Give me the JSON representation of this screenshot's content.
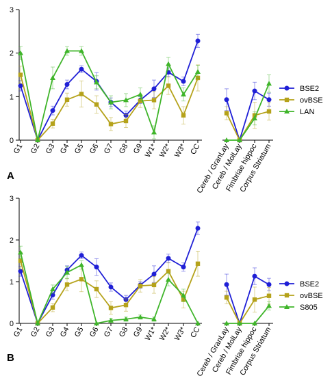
{
  "chart_data": [
    {
      "panel_label": "A",
      "type": "line",
      "categories": [
        "G1",
        "G2",
        "G3",
        "G4",
        "G5",
        "G6",
        "G7",
        "G8",
        "G9",
        "W1*",
        "W2*",
        "W3*",
        "CC",
        "Cereb / GranLay",
        "Cereb / MolLay",
        "Fimbriae hippoc",
        "Corpus Striatum"
      ],
      "ylim": [
        0,
        3
      ],
      "yticks": [
        "0",
        "1",
        "2",
        "3"
      ],
      "groups": [
        [
          0,
          12
        ],
        [
          13,
          16
        ]
      ],
      "legend_position": "right",
      "series": [
        {
          "name": "BSE2",
          "color": "#1f1fd6",
          "marker": "circle",
          "values": [
            1.25,
            0,
            0.68,
            1.28,
            1.63,
            1.35,
            0.87,
            0.57,
            0.92,
            1.18,
            1.56,
            1.35,
            2.28,
            0.93,
            0,
            1.13,
            0.93
          ],
          "errors": [
            0.12,
            0,
            0.1,
            0.1,
            0.08,
            0.2,
            0.1,
            0.1,
            0.08,
            0.2,
            0.1,
            0.1,
            0.15,
            0.25,
            0,
            0.2,
            0.15
          ]
        },
        {
          "name": "ovBSE",
          "color": "#b5a21a",
          "marker": "square",
          "values": [
            1.5,
            0,
            0.38,
            0.93,
            1.06,
            0.82,
            0.37,
            0.44,
            0.9,
            0.92,
            1.25,
            0.57,
            1.43,
            0.62,
            0,
            0.57,
            0.66
          ],
          "errors": [
            0.2,
            0,
            0.1,
            0.15,
            0.3,
            0.2,
            0.15,
            0.15,
            0.15,
            0.2,
            0.2,
            0.2,
            0.3,
            0.15,
            0,
            0.3,
            0.2
          ]
        },
        {
          "name": "LAN",
          "color": "#3fb52a",
          "marker": "triangle",
          "values": [
            2.0,
            0,
            1.43,
            2.05,
            2.05,
            1.33,
            0.87,
            0.92,
            1.05,
            0.18,
            1.75,
            1.05,
            1.57,
            0,
            0,
            0.5,
            1.3
          ],
          "errors": [
            0.15,
            0,
            0.25,
            0.1,
            0.1,
            0.15,
            0.15,
            0.15,
            0.15,
            0.15,
            0.15,
            0.15,
            0.15,
            0,
            0,
            0.15,
            0.2
          ]
        }
      ]
    },
    {
      "panel_label": "B",
      "type": "line",
      "categories": [
        "G1",
        "G2",
        "G3",
        "G4",
        "G5",
        "G6",
        "G7",
        "G8",
        "G9",
        "W1*",
        "W2*",
        "W3*",
        "CC",
        "Cereb / GranLay",
        "Cereb / MolLay",
        "Fimbriae hippoc",
        "Corpus Striatum"
      ],
      "ylim": [
        0,
        3
      ],
      "yticks": [
        "0",
        "1",
        "2",
        "3"
      ],
      "groups": [
        [
          0,
          12
        ],
        [
          13,
          16
        ]
      ],
      "legend_position": "right",
      "series": [
        {
          "name": "BSE2",
          "color": "#1f1fd6",
          "marker": "circle",
          "values": [
            1.25,
            0,
            0.68,
            1.28,
            1.63,
            1.35,
            0.87,
            0.57,
            0.92,
            1.18,
            1.56,
            1.35,
            2.28,
            0.93,
            0,
            1.13,
            0.93
          ],
          "errors": [
            0.12,
            0,
            0.1,
            0.1,
            0.08,
            0.2,
            0.1,
            0.1,
            0.08,
            0.2,
            0.1,
            0.1,
            0.15,
            0.25,
            0,
            0.2,
            0.15
          ]
        },
        {
          "name": "ovBSE",
          "color": "#b5a21a",
          "marker": "square",
          "values": [
            1.5,
            0,
            0.38,
            0.93,
            1.06,
            0.82,
            0.37,
            0.44,
            0.9,
            0.92,
            1.25,
            0.57,
            1.43,
            0.62,
            0,
            0.57,
            0.66
          ],
          "errors": [
            0.2,
            0,
            0.1,
            0.15,
            0.3,
            0.2,
            0.15,
            0.15,
            0.15,
            0.2,
            0.2,
            0.2,
            0.3,
            0.15,
            0,
            0.3,
            0.2
          ]
        },
        {
          "name": "S805",
          "color": "#3fb52a",
          "marker": "triangle",
          "values": [
            1.7,
            0,
            0.82,
            1.22,
            1.4,
            0,
            0.07,
            0.1,
            0.15,
            0.1,
            1.05,
            0.67,
            0,
            0,
            0,
            0,
            0.42
          ],
          "errors": [
            0.15,
            0,
            0.1,
            0.15,
            0.1,
            0,
            0.05,
            0.05,
            0.05,
            0.05,
            0.15,
            0.15,
            0,
            0,
            0,
            0,
            0.1
          ]
        }
      ]
    }
  ]
}
